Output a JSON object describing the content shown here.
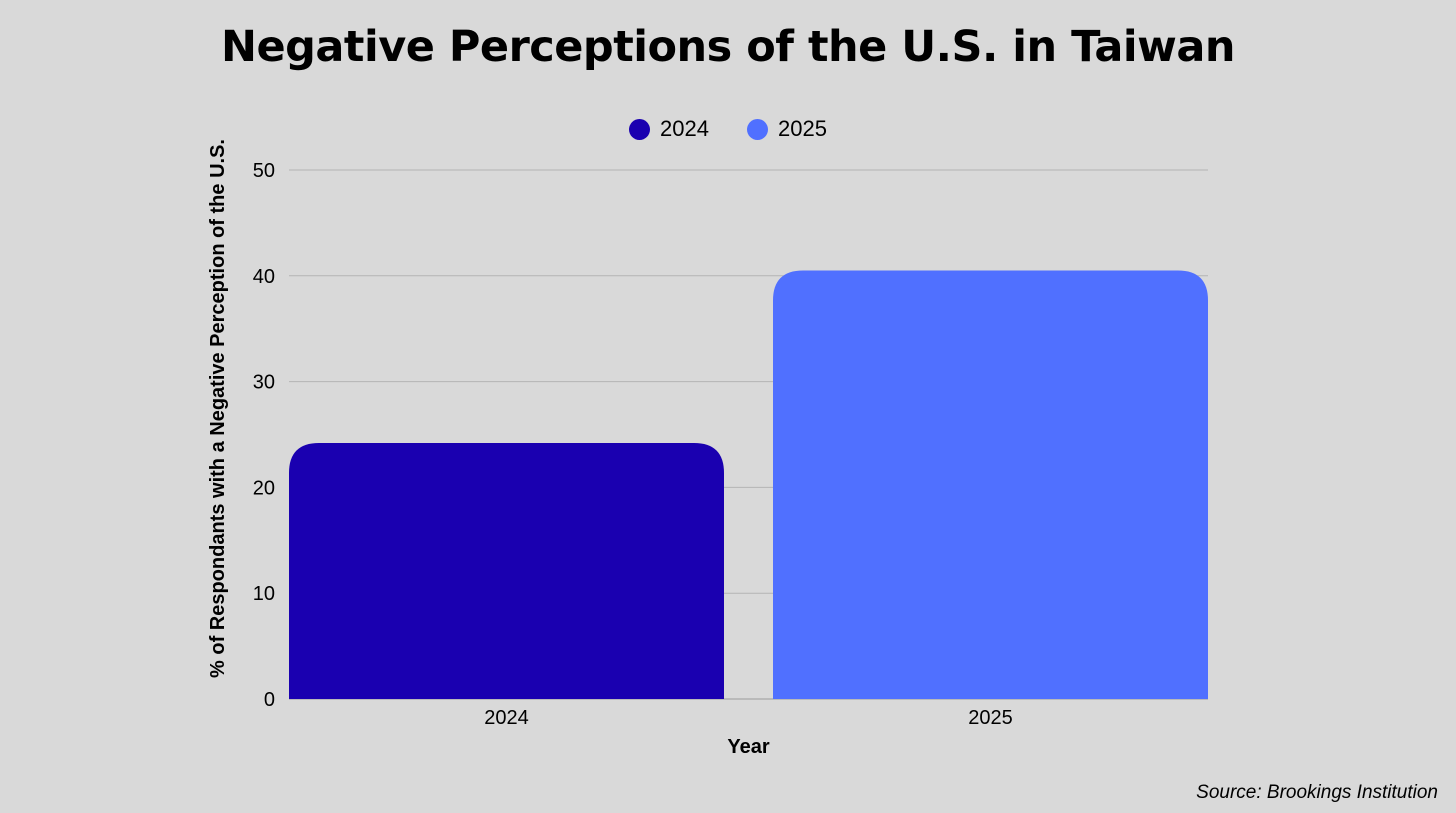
{
  "chart_data": {
    "type": "bar",
    "title": "Negative Perceptions of the U.S. in Taiwan",
    "xlabel": "Year",
    "ylabel": "% of Respondants with a Negative Perception of the U.S.",
    "categories": [
      "2024",
      "2025"
    ],
    "values": [
      24.2,
      40.5
    ],
    "colors": [
      "#1a00b0",
      "#5070ff"
    ],
    "ylim": [
      0,
      50
    ],
    "yticks": [
      0,
      10,
      20,
      30,
      40,
      50
    ],
    "grid": true,
    "legend": {
      "placement": "top-center",
      "entries": [
        {
          "label": "2024",
          "color": "#1a00b0"
        },
        {
          "label": "2025",
          "color": "#5070ff"
        }
      ]
    }
  },
  "source": "Source: Brookings Institution"
}
